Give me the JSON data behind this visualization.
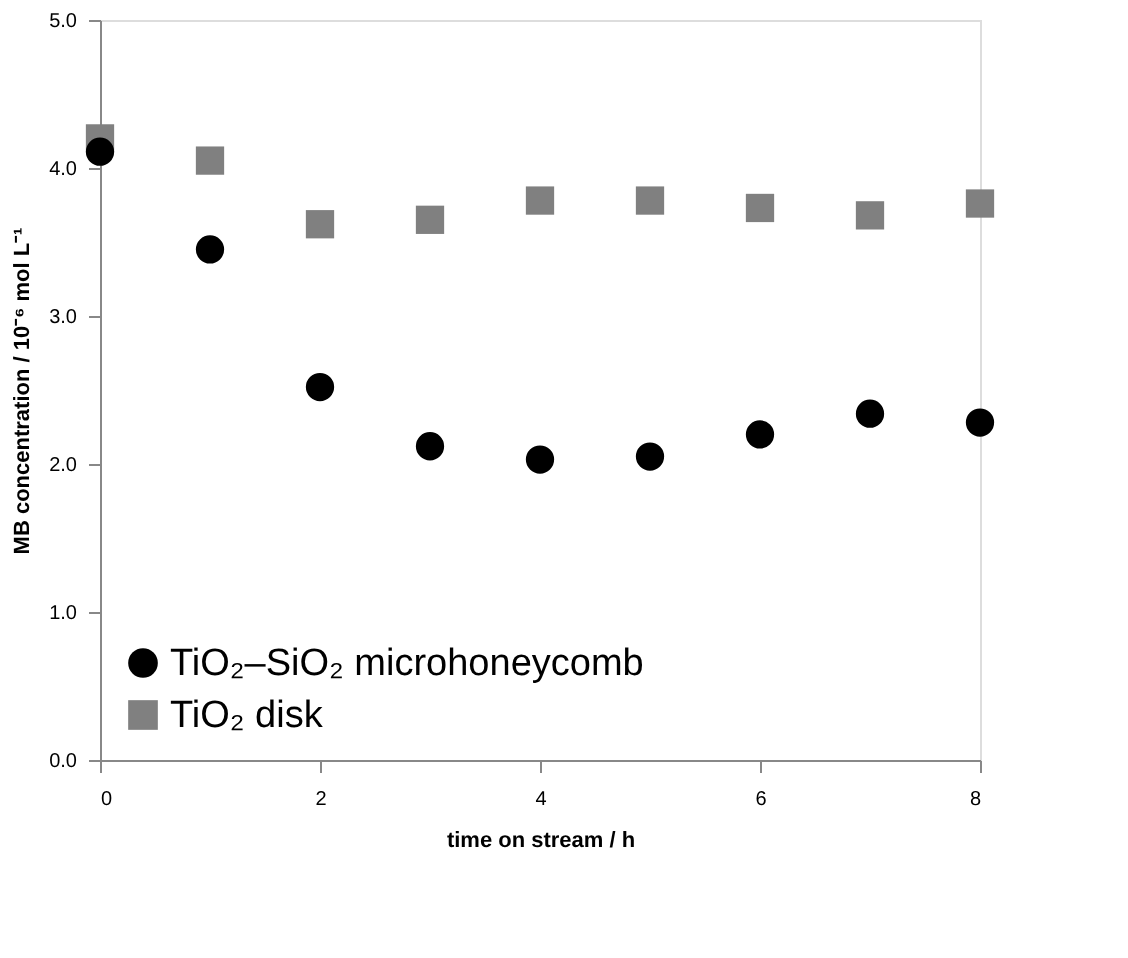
{
  "chart_data": {
    "type": "scatter",
    "xlabel": "time on stream / h",
    "ylabel": "MB concentration / 10⁻⁶ mol L⁻¹",
    "x": [
      0,
      1,
      2,
      3,
      4,
      5,
      6,
      7,
      8
    ],
    "series": [
      {
        "name": "TiO₂–SiO₂ microhoneycomb",
        "color": "#000000",
        "marker": "circle",
        "values": [
          4.11,
          3.45,
          2.52,
          2.12,
          2.03,
          2.05,
          2.2,
          2.34,
          2.28
        ]
      },
      {
        "name": "TiO₂ disk",
        "color": "#808080",
        "marker": "square",
        "values": [
          4.2,
          4.05,
          3.62,
          3.65,
          3.78,
          3.78,
          3.73,
          3.68,
          3.76
        ]
      }
    ],
    "xlim": [
      0,
      8
    ],
    "xticks": [
      0,
      2,
      4,
      6,
      8
    ],
    "ylim": [
      0,
      5
    ],
    "yticks": [
      {
        "value": 0,
        "label": "0.0"
      },
      {
        "value": 1,
        "label": "1.0"
      },
      {
        "value": 2,
        "label": "2.0"
      },
      {
        "value": 3,
        "label": "3.0"
      },
      {
        "value": 4,
        "label": "4.0"
      },
      {
        "value": 5,
        "label": "5.0"
      }
    ],
    "grid": false,
    "legend": "bottom left"
  }
}
